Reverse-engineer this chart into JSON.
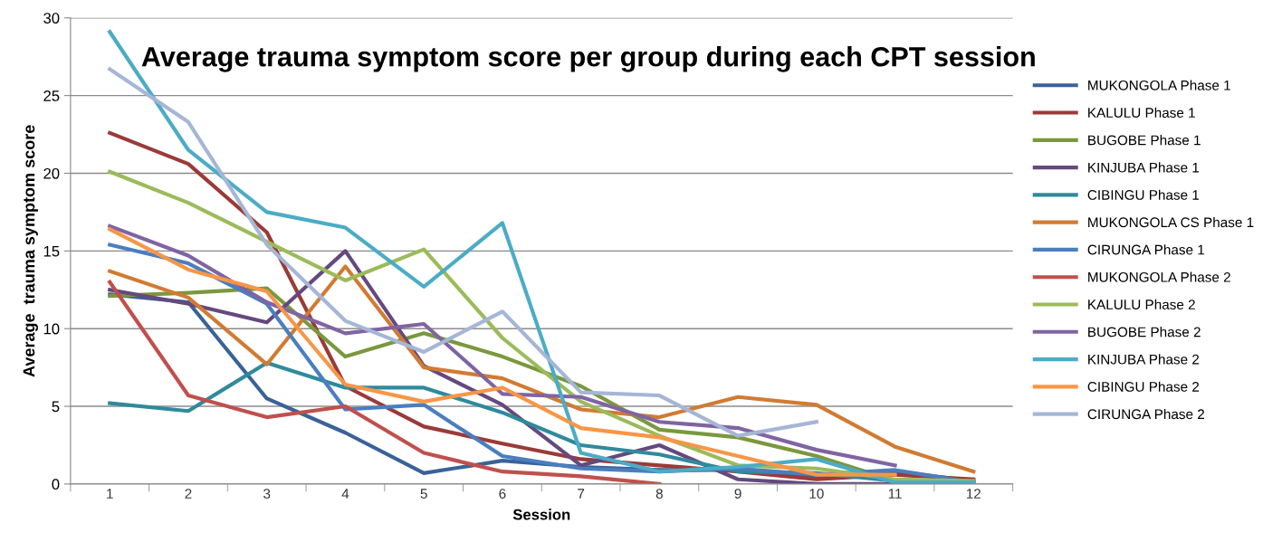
{
  "chart_data": {
    "type": "line",
    "title": "Average trauma symptom score per group during each CPT session",
    "xlabel": "Session",
    "ylabel": "Average  trauma symptom score",
    "categories": [
      "1",
      "2",
      "3",
      "4",
      "5",
      "6",
      "7",
      "8",
      "9",
      "10",
      "11",
      "12"
    ],
    "ylim": [
      0,
      30
    ],
    "yticks": [
      0,
      5,
      10,
      15,
      20,
      25,
      30
    ],
    "grid": "y",
    "legend": "right",
    "marker": "none",
    "line_style": "solid",
    "series": [
      {
        "name": "MUKONGOLA Phase 1",
        "color": "#3a6298",
        "values": [
          12.2,
          11.7,
          5.5,
          3.3,
          0.7,
          1.5,
          1.1,
          0.9,
          0.9,
          0.4,
          0.8,
          0.2
        ]
      },
      {
        "name": "KALULU Phase 1",
        "color": "#9b3a38",
        "values": [
          22.6,
          20.6,
          16.2,
          6.3,
          3.7,
          2.6,
          1.6,
          1.2,
          0.8,
          0.3,
          0.6,
          0.3
        ]
      },
      {
        "name": "BUGOBE Phase 1",
        "color": "#7a983d",
        "values": [
          12.1,
          12.3,
          12.6,
          8.2,
          9.7,
          8.2,
          6.3,
          3.5,
          3.0,
          1.8,
          0.2,
          0.2
        ]
      },
      {
        "name": "KINJUBA Phase 1",
        "color": "#64497f",
        "values": [
          12.5,
          11.6,
          10.4,
          15.0,
          7.6,
          5.1,
          1.2,
          2.5,
          0.3,
          0.0,
          0.0,
          null
        ]
      },
      {
        "name": "CIBINGU Phase 1",
        "color": "#2f8a9c",
        "values": [
          5.2,
          4.7,
          7.8,
          6.2,
          6.2,
          4.6,
          2.5,
          1.9,
          0.8,
          0.7,
          0.2,
          0.1
        ]
      },
      {
        "name": "MUKONGOLA CS Phase 1",
        "color": "#d17b32",
        "values": [
          13.7,
          12.0,
          7.7,
          14.0,
          7.5,
          6.8,
          4.8,
          4.3,
          5.6,
          5.1,
          2.4,
          0.8
        ]
      },
      {
        "name": "CIRUNGA Phase 1",
        "color": "#4a7ec0",
        "values": [
          15.4,
          14.2,
          11.6,
          4.8,
          5.1,
          1.8,
          1.0,
          0.8,
          1.0,
          0.6,
          0.9,
          0.1
        ]
      },
      {
        "name": "MUKONGOLA Phase 2",
        "color": "#c0504d",
        "values": [
          13.0,
          5.7,
          4.3,
          5.0,
          2.0,
          0.8,
          0.5,
          0.0,
          null,
          null,
          null,
          null
        ]
      },
      {
        "name": "KALULU Phase 2",
        "color": "#9bbb59",
        "values": [
          20.1,
          18.1,
          15.6,
          13.1,
          15.1,
          9.4,
          5.3,
          3.1,
          1.2,
          1.0,
          0.3,
          0.2
        ]
      },
      {
        "name": "BUGOBE Phase 2",
        "color": "#8064a2",
        "values": [
          16.6,
          14.7,
          11.7,
          9.7,
          10.3,
          5.8,
          5.6,
          4.0,
          3.6,
          2.2,
          1.2,
          null
        ]
      },
      {
        "name": "KINJUBA Phase 2",
        "color": "#4bacc6",
        "values": [
          29.1,
          21.5,
          17.5,
          16.5,
          12.7,
          16.8,
          2.0,
          0.8,
          1.1,
          1.6,
          0.1,
          0.1
        ]
      },
      {
        "name": "CIBINGU Phase 2",
        "color": "#f79646",
        "values": [
          16.4,
          13.8,
          12.4,
          6.4,
          5.3,
          6.2,
          3.6,
          3.0,
          1.8,
          0.6,
          0.6,
          null
        ]
      },
      {
        "name": "CIRUNGA Phase 2",
        "color": "#a5b6d6",
        "values": [
          26.7,
          23.3,
          15.4,
          10.5,
          8.5,
          11.1,
          5.9,
          5.7,
          3.1,
          4.0,
          null,
          null
        ]
      }
    ]
  }
}
